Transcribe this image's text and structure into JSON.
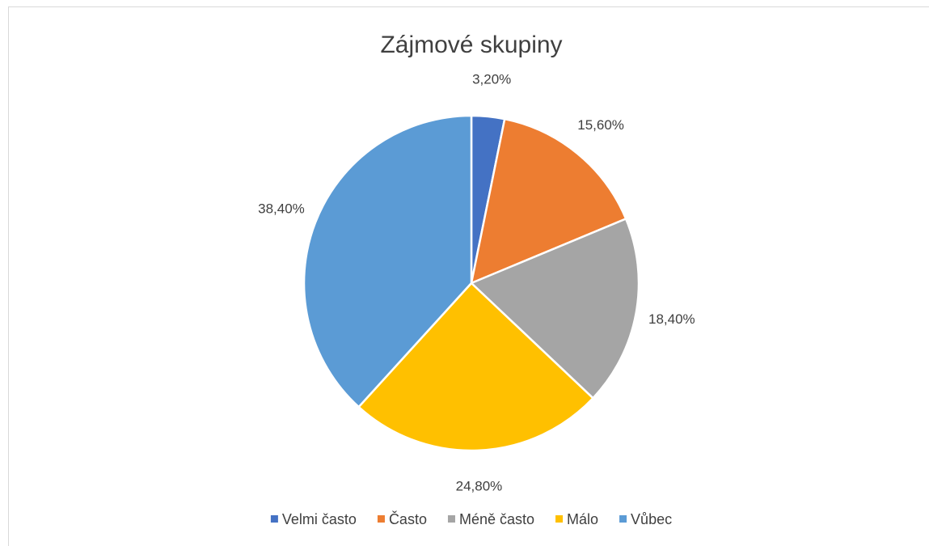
{
  "chart_data": {
    "type": "pie",
    "title": "Zájmové skupiny",
    "categories": [
      "Velmi často",
      "Často",
      "Méně často",
      "Málo",
      "Vůbec"
    ],
    "values": [
      3.2,
      15.6,
      18.4,
      24.8,
      38.4
    ],
    "value_labels": [
      "3,20%",
      "15,60%",
      "18,40%",
      "24,80%",
      "38,40%"
    ],
    "colors": [
      "#4472c4",
      "#ed7d31",
      "#a5a5a5",
      "#ffc000",
      "#5b9bd5"
    ],
    "legend": "bottom"
  }
}
